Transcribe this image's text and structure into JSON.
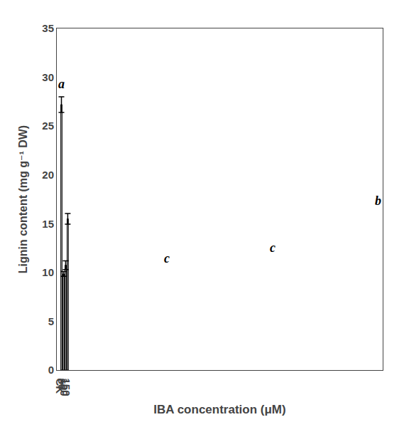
{
  "chart_data": {
    "type": "bar",
    "xlabel": "IBA concentration (μM)",
    "ylabel": "Lignin content (mg g⁻¹ DW)",
    "categories": [
      "CK",
      "50",
      "100",
      "150"
    ],
    "values": [
      27.2,
      9.85,
      10.75,
      15.5
    ],
    "errors": [
      0.8,
      0.25,
      0.45,
      0.55
    ],
    "annotations": [
      "a",
      "c",
      "c",
      "b"
    ],
    "color": "#C0C0C0",
    "ylim": [
      0,
      35
    ],
    "yticks": [
      0,
      5,
      10,
      15,
      20,
      25,
      30,
      35
    ],
    "grid": false
  }
}
